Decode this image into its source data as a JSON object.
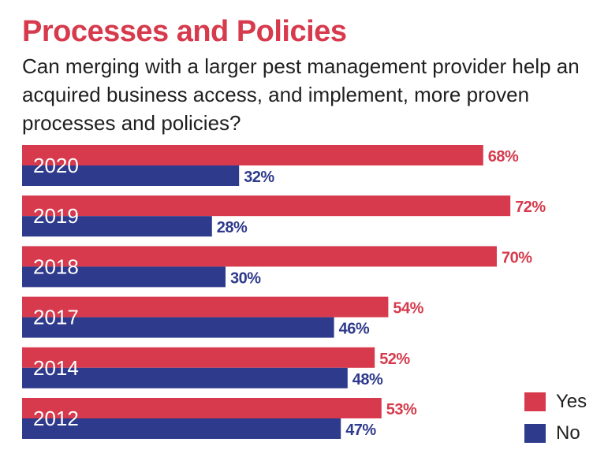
{
  "title": "Processes and Policies",
  "subtitle": "Can merging with a larger pest management provider help an acquired business access, and implement, more proven processes and policies?",
  "colors": {
    "yes": "#d63a4c",
    "no": "#2e3a8c",
    "title": "#d63a4c",
    "text": "#1f1f1f",
    "category_label": "#ffffff"
  },
  "legend": {
    "yes_label": "Yes",
    "no_label": "No"
  },
  "chart_data": {
    "type": "bar",
    "orientation": "horizontal",
    "title": "Processes and Policies",
    "subtitle": "Can merging with a larger pest management provider help an acquired business access, and implement, more proven processes and policies?",
    "categories": [
      "2020",
      "2019",
      "2018",
      "2017",
      "2014",
      "2012"
    ],
    "series": [
      {
        "name": "Yes",
        "values": [
          68,
          72,
          70,
          54,
          52,
          53
        ]
      },
      {
        "name": "No",
        "values": [
          32,
          28,
          30,
          46,
          48,
          47
        ]
      }
    ],
    "value_suffix": "%",
    "xlim": [
      0,
      100
    ],
    "grid": false,
    "legend_position": "bottom-right"
  }
}
